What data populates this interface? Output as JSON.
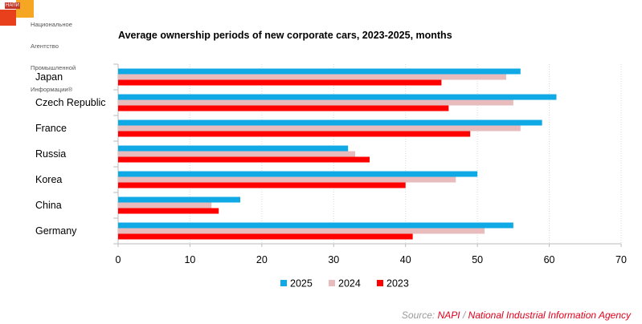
{
  "logo": {
    "tag": "НАПИ",
    "lines": [
      "Национальное",
      "Агентство",
      "Промышленной",
      "Информации®"
    ]
  },
  "source": {
    "prefix": "Source:",
    "org_short": "NAPI",
    "separator": "/",
    "org_full": "National Industrial Information Agency"
  },
  "colors": {
    "2025": "#0fa9e6",
    "2024": "#e8bcbc",
    "2023": "#ff0000",
    "axis": "#bbbbbb",
    "grid": "#d9d9d9"
  },
  "chart_data": {
    "type": "bar",
    "orientation": "horizontal",
    "title": "Average ownership periods of new corporate cars, 2023-2025, months",
    "categories": [
      "Japan",
      "Czech Republic",
      "France",
      "Russia",
      "Korea",
      "China",
      "Germany"
    ],
    "series": [
      {
        "name": "2025",
        "values": [
          56,
          61,
          59,
          32,
          50,
          17,
          55
        ]
      },
      {
        "name": "2024",
        "values": [
          54,
          55,
          56,
          33,
          47,
          13,
          51
        ]
      },
      {
        "name": "2023",
        "values": [
          45,
          46,
          49,
          35,
          40,
          14,
          41
        ]
      }
    ],
    "xlim": [
      0,
      70
    ],
    "xticks": [
      0,
      10,
      20,
      30,
      40,
      50,
      60,
      70
    ],
    "grid": "vertical",
    "legend": "bottom"
  }
}
